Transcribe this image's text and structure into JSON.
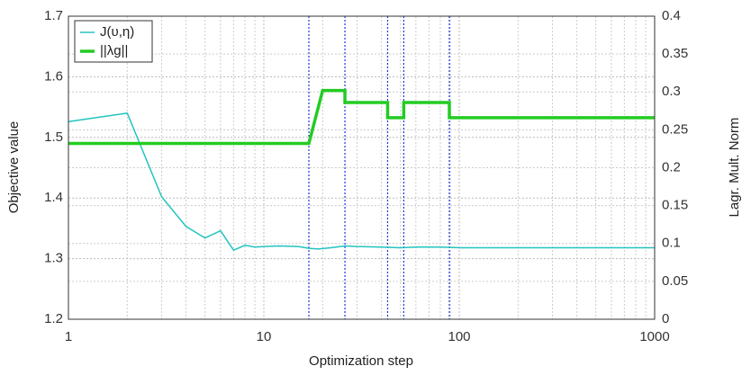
{
  "chart_data": {
    "type": "line",
    "xlabel": "Optimization step",
    "ylabel": "Objective value",
    "y2label": "Lagr. Mult. Norm",
    "xscale": "log",
    "xlim": [
      1,
      1000
    ],
    "xticks": [
      1,
      10,
      100,
      1000
    ],
    "ylim": [
      1.2,
      1.7
    ],
    "yticks": [
      1.2,
      1.3,
      1.4,
      1.5,
      1.6,
      1.7
    ],
    "y2lim": [
      0,
      0.4
    ],
    "y2ticks": [
      0,
      0.05,
      0.1,
      0.15,
      0.2,
      0.25,
      0.3,
      0.35,
      0.4
    ],
    "grid": true,
    "legend": "upper left",
    "vlines": [
      17,
      26,
      43,
      52,
      89
    ],
    "vline_color": "#2233dd",
    "series": [
      {
        "name": "J(υ,η)",
        "color": "#22c4c0",
        "width": 1.5,
        "x": [
          1,
          2,
          3,
          4,
          5,
          6,
          7,
          8,
          9,
          10,
          12,
          15,
          17,
          19,
          22,
          26,
          30,
          40,
          50,
          60,
          80,
          100,
          200,
          500,
          1000
        ],
        "values": [
          1.526,
          1.54,
          1.402,
          1.353,
          1.334,
          1.346,
          1.314,
          1.322,
          1.319,
          1.32,
          1.321,
          1.32,
          1.317,
          1.316,
          1.318,
          1.321,
          1.32,
          1.319,
          1.318,
          1.319,
          1.319,
          1.318,
          1.318,
          1.318,
          1.318
        ]
      },
      {
        "name": "||λg||",
        "color": "#22cc22",
        "width": 3.5,
        "axis": "y2",
        "x": [
          1,
          17,
          20,
          26,
          26,
          43,
          43,
          52,
          52,
          89,
          89,
          1000
        ],
        "values": [
          0.232,
          0.232,
          0.302,
          0.302,
          0.286,
          0.286,
          0.266,
          0.266,
          0.286,
          0.286,
          0.266,
          0.266
        ]
      }
    ]
  }
}
